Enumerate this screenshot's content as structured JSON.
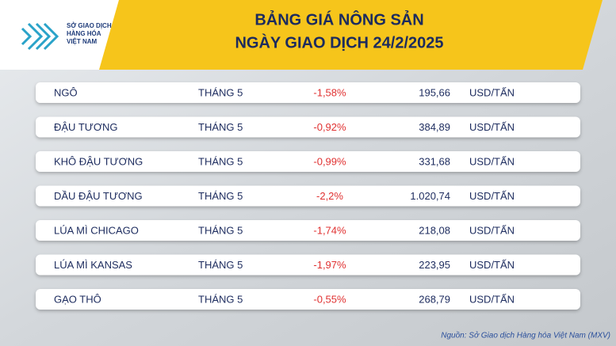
{
  "header": {
    "logo_lines": [
      "SỞ GIAO DỊCH",
      "HÀNG HÓA",
      "VIỆT NAM"
    ],
    "title_lines": [
      "BẢNG GIÁ NÔNG SẢN",
      "NGÀY GIAO DỊCH 24/2/2025"
    ]
  },
  "table": {
    "rows": [
      [
        "NGÔ",
        "THÁNG 5",
        "-1,58%",
        "195,66",
        "USD/TẤN"
      ],
      [
        "ĐẬU TƯƠNG",
        "THÁNG 5",
        "-0,92%",
        "384,89",
        "USD/TẤN"
      ],
      [
        "KHÔ ĐẬU TƯƠNG",
        "THÁNG 5",
        "-0,99%",
        "331,68",
        "USD/TẤN"
      ],
      [
        "DẦU ĐẬU TƯƠNG",
        "THÁNG 5",
        "-2,2%",
        "1.020,74",
        "USD/TẤN"
      ],
      [
        "LÚA MÌ CHICAGO",
        "THÁNG 5",
        "-1,74%",
        "218,08",
        "USD/TẤN"
      ],
      [
        "LÚA MÌ KANSAS",
        "THÁNG 5",
        "-1,97%",
        "223,95",
        "USD/TẤN"
      ],
      [
        "GẠO THÔ",
        "THÁNG 5",
        "-0,55%",
        "268,79",
        "USD/TẤN"
      ]
    ]
  },
  "source": "Nguồn: Sở Giao dịch Hàng hóa Việt Nam (MXV)"
}
